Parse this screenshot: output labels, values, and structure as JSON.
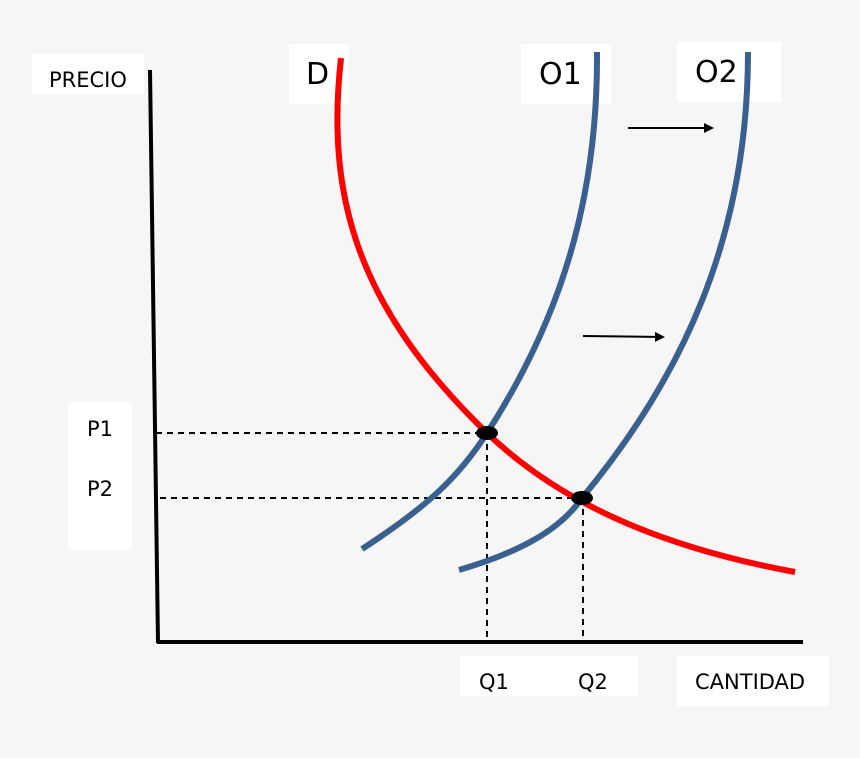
{
  "axes": {
    "y_label": "PRECIO",
    "x_label": "CANTIDAD"
  },
  "curves": {
    "demand": {
      "label": "D",
      "color": "#ff0000"
    },
    "supply1": {
      "label": "O1",
      "color": "#3a6090"
    },
    "supply2": {
      "label": "O2",
      "color": "#3a6090"
    }
  },
  "prices": {
    "p1": "P1",
    "p2": "P2"
  },
  "quantities": {
    "q1": "Q1",
    "q2": "Q2"
  },
  "colors": {
    "background": "#f6f6f6",
    "axis": "#000000",
    "guide": "#000000"
  }
}
